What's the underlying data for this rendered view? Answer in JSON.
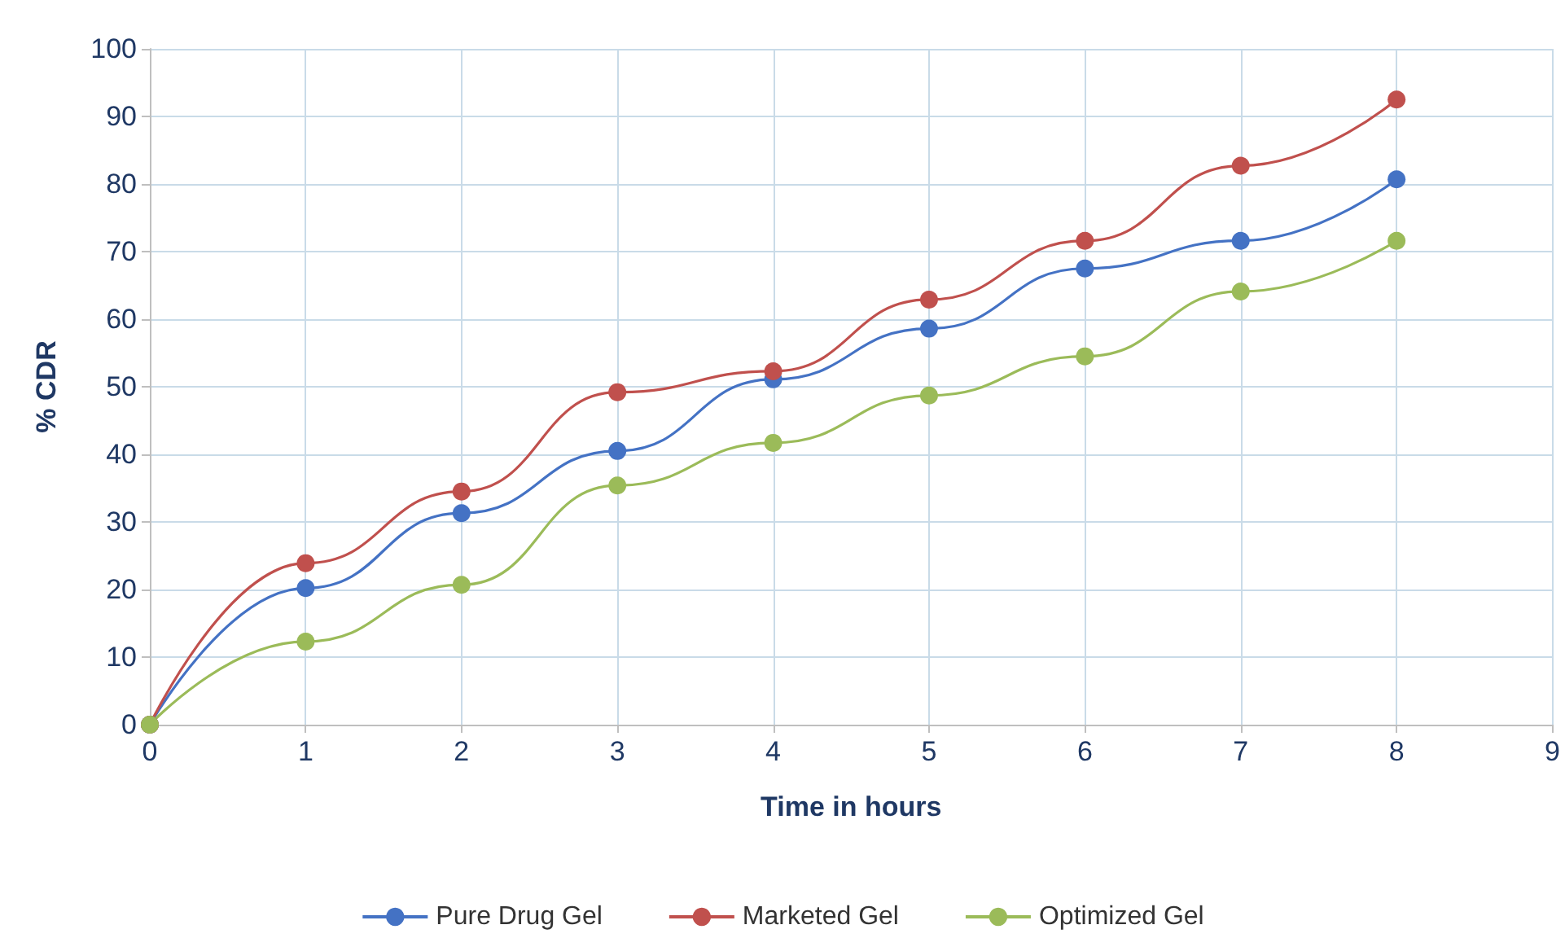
{
  "chart_data": {
    "type": "line",
    "xlabel": "Time in hours",
    "ylabel": "% CDR",
    "x": [
      0,
      1,
      2,
      3,
      4,
      5,
      6,
      7,
      8
    ],
    "series": [
      {
        "name": "Pure Drug Gel",
        "color": "#4472c4",
        "values": [
          0,
          20.2,
          31.3,
          40.5,
          51.1,
          58.6,
          67.5,
          71.6,
          80.7
        ]
      },
      {
        "name": "Marketed Gel",
        "color": "#c0504d",
        "values": [
          0,
          23.9,
          34.5,
          49.2,
          52.3,
          62.9,
          71.6,
          82.7,
          92.5
        ]
      },
      {
        "name": "Optimized Gel",
        "color": "#9bbb59",
        "values": [
          0,
          12.3,
          20.7,
          35.4,
          41.7,
          48.7,
          54.5,
          64.1,
          71.6
        ]
      }
    ],
    "xlim": [
      0,
      9
    ],
    "xticks": [
      0,
      1,
      2,
      3,
      4,
      5,
      6,
      7,
      8,
      9
    ],
    "ylim": [
      0,
      100
    ],
    "yticks": [
      0,
      10,
      20,
      30,
      40,
      50,
      60,
      70,
      80,
      90,
      100
    ],
    "grid": true,
    "legend": "bottom",
    "marker": "circle",
    "line_style": "solid"
  }
}
